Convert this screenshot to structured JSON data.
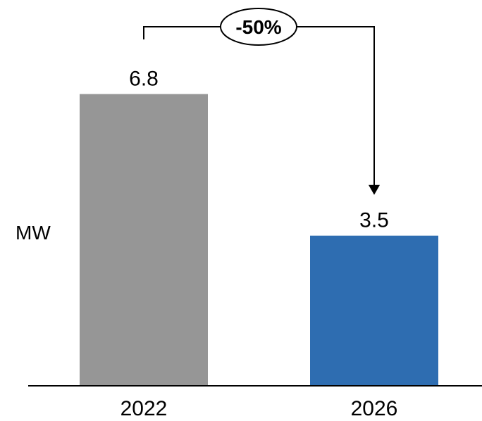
{
  "chart_data": {
    "type": "bar",
    "categories": [
      "2022",
      "2026"
    ],
    "values": [
      6.8,
      3.5
    ],
    "data_labels": [
      "6.8",
      "3.5"
    ],
    "ylabel": "MW",
    "xlabel": "",
    "title": "",
    "ylim": [
      0,
      8.5
    ],
    "grid": false,
    "legend": "none",
    "annotation": {
      "text": "-50%",
      "from_category": "2022",
      "to_category": "2026"
    }
  },
  "colors": {
    "bars": [
      "#969696",
      "#2e6db1"
    ],
    "axis": "#000000",
    "annotation": "#000000"
  }
}
